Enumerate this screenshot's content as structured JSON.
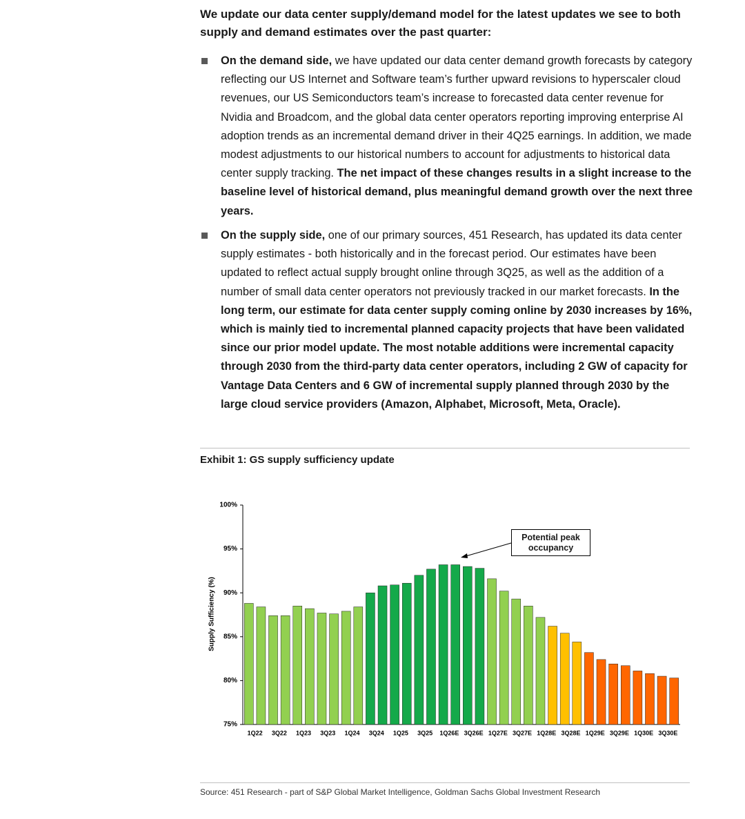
{
  "heading": "We update our data center supply/demand model for the latest updates we see to both supply and demand estimates over the past quarter:",
  "bullets": [
    {
      "runs": [
        {
          "text": "On the demand side,",
          "bold": true
        },
        {
          "text": " we have updated our data center demand growth forecasts by category reflecting our US Internet and Software team’s further upward revisions to hyperscaler cloud revenues, our US Semiconductors team’s increase to forecasted data center revenue for Nvidia and Broadcom, and the global data center operators reporting improving enterprise AI adoption trends as an incremental demand driver in their 4Q25 earnings. In addition, we made modest adjustments to our historical numbers to account for adjustments to historical data center supply tracking. ",
          "bold": false
        },
        {
          "text": "The net impact of these changes results in a slight increase to the baseline level of historical demand, plus meaningful demand growth over the next three years.",
          "bold": true
        }
      ]
    },
    {
      "runs": [
        {
          "text": "On the supply side,",
          "bold": true
        },
        {
          "text": " one of our primary sources, 451 Research, has updated its data center supply estimates - both historically and in the forecast period. Our estimates have been updated to reflect actual supply brought online through 3Q25, as well as the addition of a number of small data center operators not previously tracked in our market forecasts. ",
          "bold": false
        },
        {
          "text": "In the long term, our estimate for data center supply coming online by 2030 increases by 16%, which is mainly tied to incremental planned capacity projects that have been validated since our prior model update. The most notable additions were incremental capacity through 2030 from the third-party data center operators, including 2 GW of capacity for Vantage Data Centers and 6 GW of incremental supply planned through 2030 by the large cloud service providers (Amazon, Alphabet, Microsoft, Meta, Oracle).",
          "bold": true
        }
      ]
    }
  ],
  "exhibit_title": "Exhibit 1: GS supply sufficiency update",
  "chart_data": {
    "type": "bar",
    "y_label": "Supply Sufficiency (%)",
    "annotation": "Potential peak occupancy",
    "categories": [
      "1Q22",
      null,
      "3Q22",
      null,
      "1Q23",
      null,
      "3Q23",
      null,
      "1Q24",
      null,
      "3Q24",
      null,
      "1Q25",
      null,
      "3Q25",
      null,
      "1Q26E",
      null,
      "3Q26E",
      null,
      "1Q27E",
      null,
      "3Q27E",
      null,
      "1Q28E",
      null,
      "3Q28E",
      null,
      "1Q29E",
      null,
      "3Q29E",
      null,
      "1Q30E",
      null,
      "3Q30E",
      null
    ],
    "values": [
      88.8,
      88.4,
      87.4,
      87.4,
      88.5,
      88.2,
      87.7,
      87.6,
      87.9,
      88.4,
      90.0,
      90.8,
      90.9,
      91.1,
      92.0,
      92.7,
      93.2,
      93.2,
      93.0,
      92.8,
      91.6,
      90.2,
      89.3,
      88.5,
      87.2,
      86.2,
      85.4,
      84.4,
      83.2,
      82.4,
      81.9,
      81.7,
      81.1,
      80.8,
      80.5,
      80.3
    ],
    "colors": [
      "#92d050",
      "#92d050",
      "#92d050",
      "#92d050",
      "#92d050",
      "#92d050",
      "#92d050",
      "#92d050",
      "#92d050",
      "#92d050",
      "#14a94a",
      "#14a94a",
      "#14a94a",
      "#14a94a",
      "#14a94a",
      "#14a94a",
      "#14a94a",
      "#14a94a",
      "#14a94a",
      "#14a94a",
      "#92d050",
      "#92d050",
      "#92d050",
      "#92d050",
      "#92d050",
      "#ffc000",
      "#ffc000",
      "#ffc000",
      "#ff6600",
      "#ff6600",
      "#ff6600",
      "#ff6600",
      "#ff6600",
      "#ff6600",
      "#ff6600",
      "#ff6600"
    ],
    "ylim": [
      75,
      100
    ],
    "yticks": [
      {
        "value": 75,
        "label": "75%"
      },
      {
        "value": 80,
        "label": "80%"
      },
      {
        "value": 85,
        "label": "85%"
      },
      {
        "value": 90,
        "label": "90%"
      },
      {
        "value": 95,
        "label": "95%"
      },
      {
        "value": 100,
        "label": "100%"
      }
    ],
    "grid": false
  },
  "source": "Source: 451 Research - part of S&P Global Market Intelligence, Goldman Sachs Global Investment Research"
}
